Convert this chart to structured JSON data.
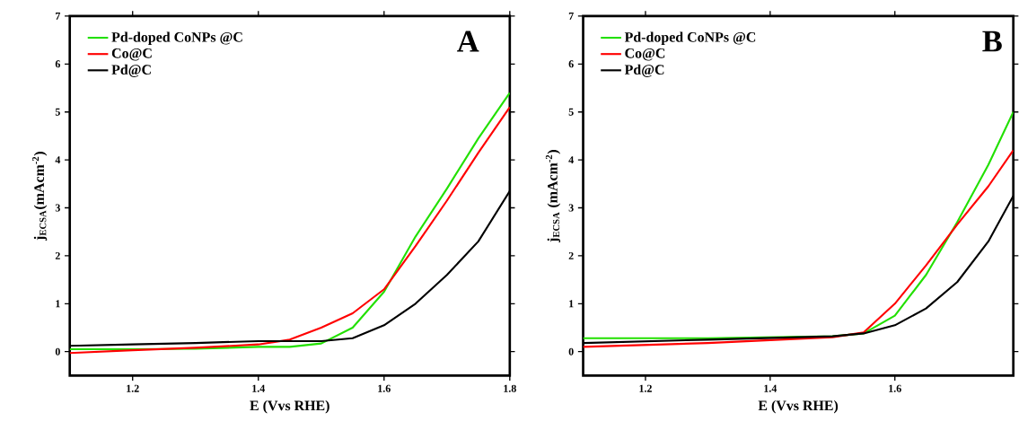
{
  "chart_data": [
    {
      "type": "line",
      "xlabel": "E (Vvs RHE)",
      "ylabel": "j$_{ECSA}$(mAcm$^{-2}$)",
      "annotations": [
        "A"
      ],
      "xlim": [
        1.1,
        1.8
      ],
      "ylim": [
        -0.5,
        7
      ],
      "xticks": [
        1.2,
        1.4,
        1.6,
        1.8
      ],
      "yticks": [
        0,
        1,
        2,
        3,
        4,
        5,
        6,
        7
      ],
      "legend": "top left",
      "grid": false,
      "marker": "none",
      "line_style": "solid",
      "series": [
        {
          "name": "Pd-doped CoNPs @C",
          "color": "#22e000",
          "x": [
            1.1,
            1.2,
            1.3,
            1.4,
            1.45,
            1.5,
            1.55,
            1.6,
            1.65,
            1.7,
            1.75,
            1.8
          ],
          "values": [
            0.05,
            0.05,
            0.06,
            0.1,
            0.1,
            0.17,
            0.5,
            1.25,
            2.4,
            3.4,
            4.45,
            5.4
          ]
        },
        {
          "name": "Co@C",
          "color": "#ff0000",
          "x": [
            1.1,
            1.2,
            1.3,
            1.4,
            1.45,
            1.5,
            1.55,
            1.6,
            1.65,
            1.7,
            1.75,
            1.8
          ],
          "values": [
            -0.03,
            0.03,
            0.08,
            0.15,
            0.25,
            0.5,
            0.8,
            1.3,
            2.2,
            3.15,
            4.15,
            5.1
          ]
        },
        {
          "name": "Pd@C",
          "color": "#000000",
          "x": [
            1.1,
            1.2,
            1.3,
            1.4,
            1.5,
            1.55,
            1.6,
            1.65,
            1.7,
            1.75,
            1.8
          ],
          "values": [
            0.12,
            0.15,
            0.18,
            0.22,
            0.22,
            0.28,
            0.55,
            1.0,
            1.6,
            2.3,
            3.35
          ]
        }
      ]
    },
    {
      "type": "line",
      "xlabel": "E (Vvs RHE)",
      "ylabel": "j$_{ECSA}$ (mAcm$^{-2}$)",
      "annotations": [
        "B"
      ],
      "xlim": [
        1.1,
        1.79
      ],
      "ylim": [
        -0.5,
        7
      ],
      "xticks": [
        1.2,
        1.4,
        1.6
      ],
      "yticks": [
        0,
        1,
        2,
        3,
        4,
        5,
        6,
        7
      ],
      "legend": "top left",
      "grid": false,
      "marker": "none",
      "line_style": "solid",
      "series": [
        {
          "name": "Pd-doped CoNPs @C",
          "color": "#22e000",
          "x": [
            1.1,
            1.3,
            1.5,
            1.55,
            1.6,
            1.65,
            1.7,
            1.75,
            1.79
          ],
          "values": [
            0.28,
            0.28,
            0.32,
            0.38,
            0.75,
            1.6,
            2.7,
            3.9,
            5.0
          ]
        },
        {
          "name": "Co@C",
          "color": "#ff0000",
          "x": [
            1.1,
            1.3,
            1.5,
            1.55,
            1.6,
            1.65,
            1.7,
            1.75,
            1.79
          ],
          "values": [
            0.1,
            0.18,
            0.3,
            0.4,
            1.0,
            1.8,
            2.65,
            3.45,
            4.2
          ]
        },
        {
          "name": "Pd@C",
          "color": "#000000",
          "x": [
            1.1,
            1.3,
            1.5,
            1.55,
            1.6,
            1.65,
            1.7,
            1.75,
            1.79
          ],
          "values": [
            0.18,
            0.25,
            0.32,
            0.38,
            0.55,
            0.9,
            1.45,
            2.3,
            3.25
          ]
        }
      ]
    }
  ]
}
